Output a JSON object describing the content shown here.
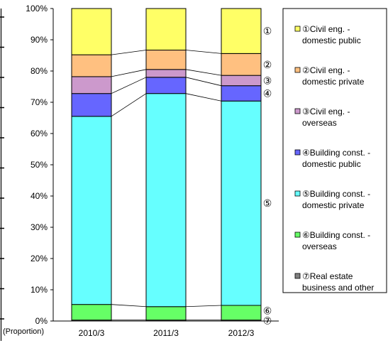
{
  "chart_data": {
    "type": "bar",
    "stacked": true,
    "categories": [
      "2010/3",
      "2011/3",
      "2012/3"
    ],
    "ylim": [
      0,
      100
    ],
    "yticks": [
      "0%",
      "10%",
      "20%",
      "30%",
      "40%",
      "50%",
      "60%",
      "70%",
      "80%",
      "90%",
      "100%"
    ],
    "ylabel": "(Proportion)",
    "legend_position": "right",
    "series": [
      {
        "name": "⑦Real estate business and other",
        "marker": "⑦",
        "color": "#808080",
        "values": [
          0.3,
          0.3,
          0.3
        ]
      },
      {
        "name": "⑥Building const. - overseas",
        "marker": "⑥",
        "color": "#66ff66",
        "values": [
          5.0,
          4.3,
          4.7
        ]
      },
      {
        "name": "⑤Building const. - domestic private",
        "marker": "⑤",
        "color": "#66ffff",
        "values": [
          60.2,
          68.2,
          65.4
        ]
      },
      {
        "name": "④Building const. - domestic public",
        "marker": "④",
        "color": "#6666ff",
        "values": [
          7.3,
          5.2,
          4.9
        ]
      },
      {
        "name": "③Civil eng. - overseas",
        "marker": "③",
        "color": "#cc99cc",
        "values": [
          5.4,
          2.5,
          3.3
        ]
      },
      {
        "name": "②Civil eng. - domestic private",
        "marker": "②",
        "color": "#ffc080",
        "values": [
          7.0,
          6.2,
          7.0
        ]
      },
      {
        "name": "①Civil eng. - domestic public",
        "marker": "①",
        "color": "#ffff66",
        "values": [
          14.8,
          13.3,
          14.4
        ]
      }
    ],
    "legend": [
      {
        "line1": "①Civil eng. -",
        "line2": "domestic public",
        "color": "#ffff66"
      },
      {
        "line1": "②Civil eng. -",
        "line2": "domestic private",
        "color": "#ffc080"
      },
      {
        "line1": "③Civil eng. -",
        "line2": "overseas",
        "color": "#cc99cc"
      },
      {
        "line1": "④Building const. -",
        "line2": "domestic public",
        "color": "#6666ff"
      },
      {
        "line1": "⑤Building const. -",
        "line2": "domestic private",
        "color": "#66ffff"
      },
      {
        "line1": "⑥Building const. -",
        "line2": "overseas",
        "color": "#66ff66"
      },
      {
        "line1": "⑦Real estate",
        "line2": "business and other",
        "color": "#808080"
      }
    ]
  }
}
